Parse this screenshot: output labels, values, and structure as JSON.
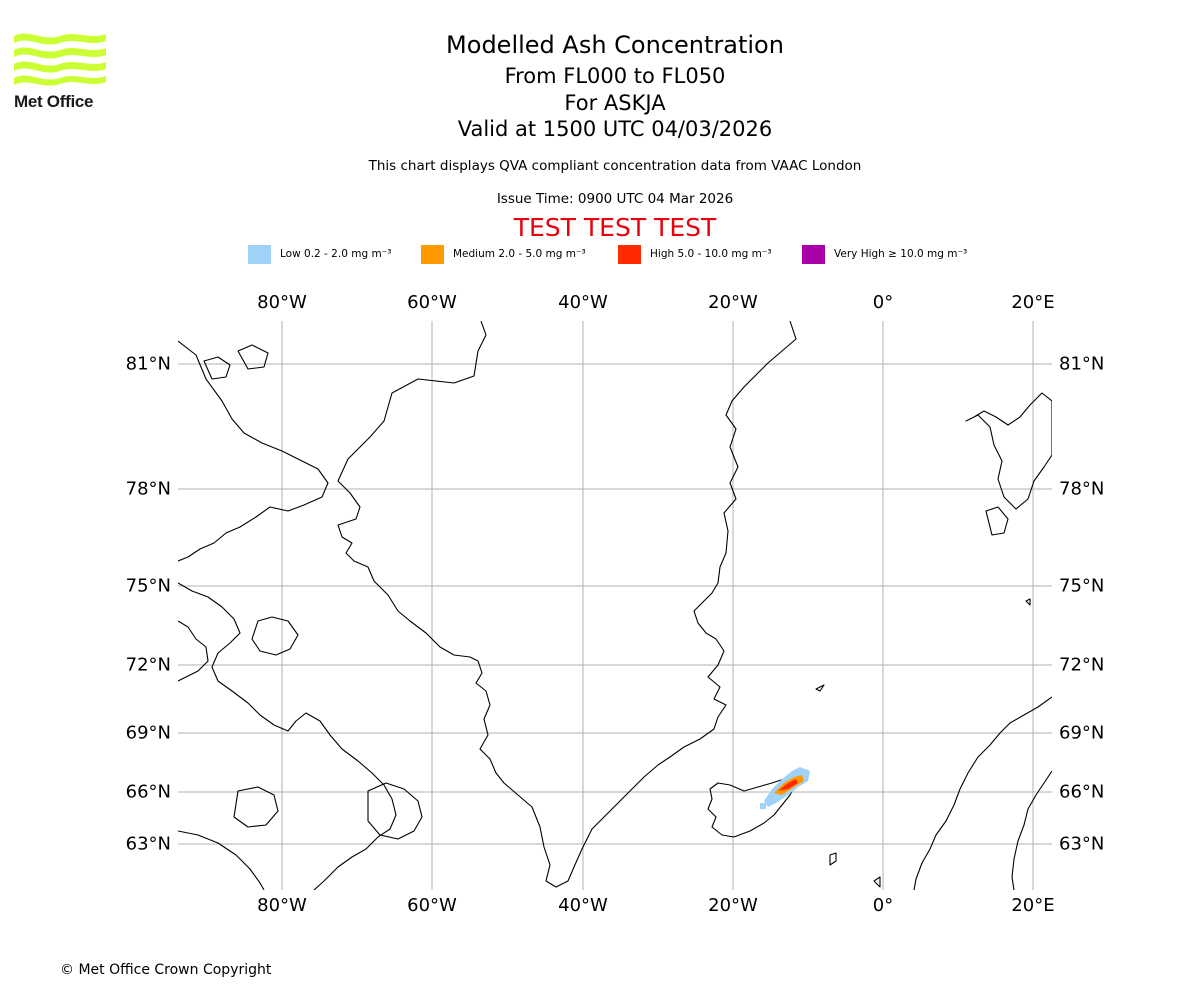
{
  "logo": {
    "text": "Met Office",
    "color": "#ccff33"
  },
  "header": {
    "title": "Modelled Ash Concentration",
    "levels": "From FL000 to FL050",
    "volcano": "For ASKJA",
    "valid": "Valid at 1500 UTC 04/03/2026",
    "note": "This chart displays QVA compliant concentration data from VAAC London",
    "issue": "Issue Time: 0900 UTC 04 Mar 2026",
    "test_banner": "TEST TEST TEST"
  },
  "legend": [
    {
      "label": "Low 0.2 - 2.0 mg m⁻³",
      "color": "#a0d2f8"
    },
    {
      "label": "Medium 2.0 - 5.0 mg m⁻³",
      "color": "#ff9900"
    },
    {
      "label": "High 5.0 - 10.0 mg m⁻³",
      "color": "#ff2a00"
    },
    {
      "label": "Very High  ≥  10.0 mg m⁻³",
      "color": "#aa00aa"
    }
  ],
  "map": {
    "lon_labels": [
      "80°W",
      "60°W",
      "40°W",
      "20°W",
      "0°",
      "20°E"
    ],
    "lat_labels": [
      "81°N",
      "78°N",
      "75°N",
      "72°N",
      "69°N",
      "66°N",
      "63°N"
    ],
    "gridline_color": "#b0b0b0",
    "coastline_color": "#000000"
  },
  "footer": {
    "copyright": "© Met Office Crown Copyright"
  }
}
